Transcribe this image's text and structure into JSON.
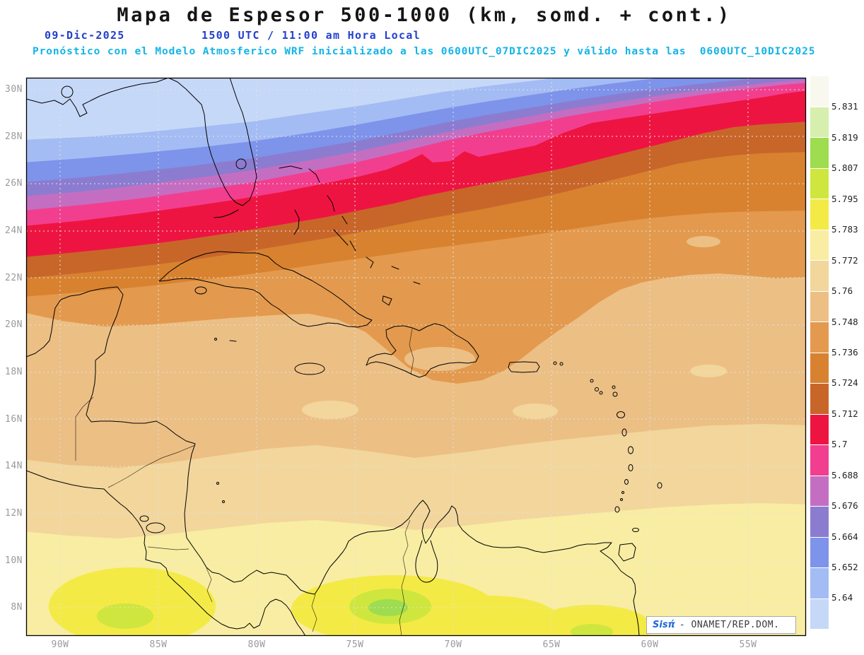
{
  "header": {
    "title": "Mapa de Espesor 500-1000 (km, somd. + cont.)",
    "date": "09-Dic-2025",
    "time": "1500 UTC / 11:00 am Hora Local",
    "forecast_line": "Pronóstico con el Modelo Atmosferico WRF inicializado a las 0600UTC_07DIC2025 y válido hasta las  0600UTC_10DIC2025"
  },
  "map": {
    "lat_ticks": [
      "30N",
      "28N",
      "26N",
      "24N",
      "22N",
      "20N",
      "18N",
      "16N",
      "14N",
      "12N",
      "10N",
      "8N"
    ],
    "lon_ticks": [
      "90W",
      "85W",
      "80W",
      "75W",
      "70W",
      "65W",
      "60W",
      "55W"
    ]
  },
  "colorbar": {
    "labels": [
      "5.831",
      "5.819",
      "5.807",
      "5.795",
      "5.783",
      "5.772",
      "5.76",
      "5.748",
      "5.736",
      "5.724",
      "5.712",
      "5.7",
      "5.688",
      "5.676",
      "5.664",
      "5.652",
      "5.64"
    ],
    "colors_top_to_bottom": [
      "#f8f8ee",
      "#d6efae",
      "#9edc50",
      "#cfe63e",
      "#f4ea45",
      "#f8eda2",
      "#f2d69c",
      "#ecbf85",
      "#e39a4e",
      "#d8822f",
      "#c8662a",
      "#ee1441",
      "#f23e8e",
      "#c46ec2",
      "#8c7cd0",
      "#7e93ea",
      "#a4bcf4",
      "#c6d8f8"
    ]
  },
  "credit": {
    "brand": "Sisπ́",
    "org": "- ONAMET/REP.DOM."
  }
}
